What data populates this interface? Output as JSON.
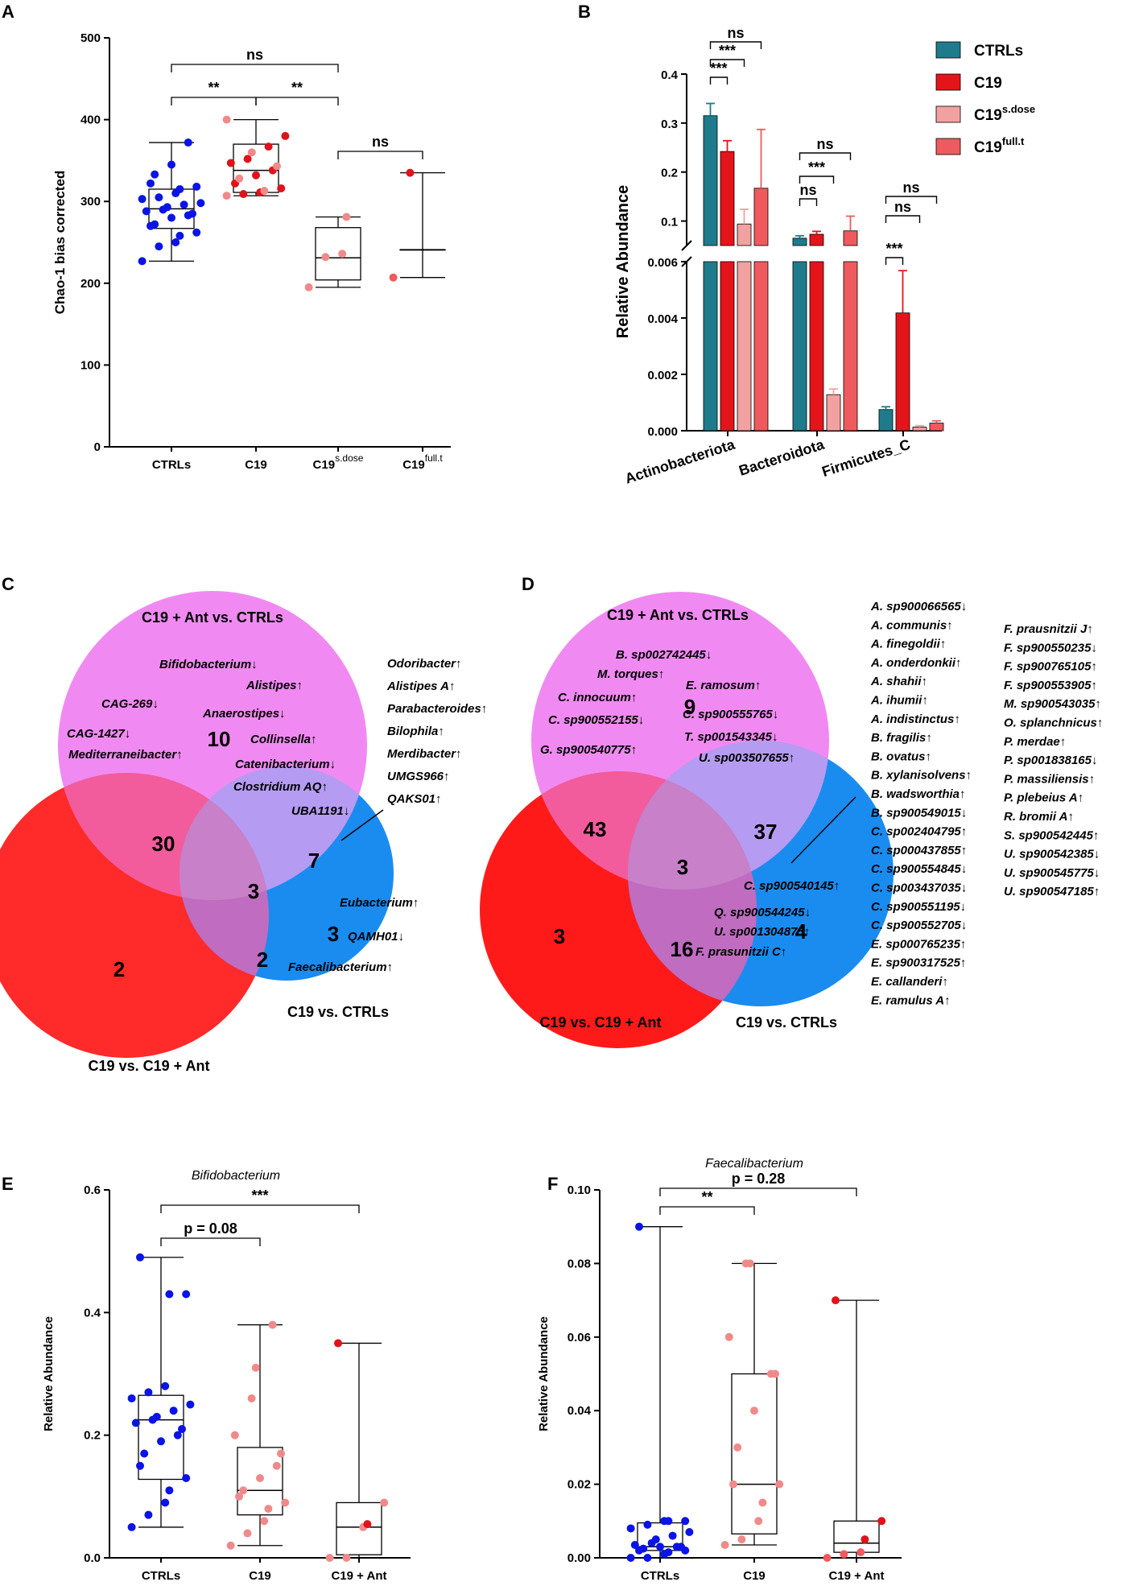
{
  "colors": {
    "blue_dot": "#0a14e6",
    "red_dot": "#e0121b",
    "pink_dot": "#f08a8a",
    "teal": "#1e7b8c",
    "red_bar": "#e4141b",
    "lightpink_bar": "#f2a1a1",
    "salmon_bar": "#ef5a5e",
    "venn_magenta": "#ee7af0",
    "venn_red": "#ff2a2a",
    "venn_blue": "#1a8cf0"
  },
  "panel_labels": [
    "A",
    "B",
    "C",
    "D",
    "E",
    "F"
  ],
  "chart_data": [
    {
      "id": "A",
      "type": "box",
      "ylabel": "Chao-1 bias corrected",
      "ylim": [
        0,
        500
      ],
      "yticks": [
        "0",
        "100",
        "200",
        "300",
        "400",
        "500"
      ],
      "categories": [
        "CTRLs",
        "C19",
        "C19",
        "C19"
      ],
      "category_sups": [
        "",
        "",
        "s.dose",
        "full.t"
      ],
      "boxes": [
        {
          "min": 227,
          "q1": 267,
          "median": 291,
          "q3": 315,
          "max": 372
        },
        {
          "min": 307,
          "q1": 311,
          "median": 338,
          "q3": 370,
          "max": 400
        },
        {
          "min": 195,
          "q1": 204,
          "median": 231,
          "q3": 268,
          "max": 281
        },
        {
          "min": 207,
          "q1": 241,
          "median": 241,
          "q3": 241,
          "max": 335
        }
      ],
      "points": [
        [
          227,
          245,
          250,
          258,
          262,
          270,
          272,
          280,
          283,
          285,
          288,
          290,
          293,
          296,
          298,
          303,
          305,
          310,
          315,
          318,
          322,
          333,
          345,
          372
        ],
        [
          307,
          309,
          311,
          313,
          316,
          322,
          328,
          332,
          338,
          343,
          347,
          352,
          360,
          367,
          380,
          400
        ],
        [
          195,
          232,
          236,
          281
        ],
        [
          207,
          335
        ]
      ],
      "brackets": [
        {
          "from": 0,
          "to": 1,
          "label": "**"
        },
        {
          "from": 1,
          "to": 2,
          "label": "**"
        },
        {
          "from": 0,
          "to": 2,
          "label": "ns"
        },
        {
          "from": 2,
          "to": 3,
          "label": "ns"
        }
      ]
    },
    {
      "id": "B",
      "type": "bar",
      "ylabel": "Relative Abundance",
      "categories": [
        "Actinobacteriota",
        "Bacteroidota",
        "Firmicutes_C"
      ],
      "ylim_upper": [
        0.05,
        0.4
      ],
      "ylim_lower": [
        0,
        0.006
      ],
      "yticks_upper": [
        "0.1",
        "0.2",
        "0.3",
        "0.4"
      ],
      "yticks_lower": [
        "0.000",
        "0.002",
        "0.004",
        "0.006"
      ],
      "series": [
        {
          "name": "CTRLs",
          "sup": "",
          "values": [
            0.315,
            0.065,
            0.00075
          ],
          "errors": [
            0.025,
            0.005,
            0.0001
          ]
        },
        {
          "name": "C19",
          "sup": "",
          "values": [
            0.242,
            0.073,
            0.00418
          ],
          "errors": [
            0.022,
            0.006,
            0.0015
          ]
        },
        {
          "name": "C19",
          "sup": "s.dose",
          "values": [
            0.094,
            0.00128,
            0.00013
          ],
          "errors": [
            0.03,
            0.0002,
            5e-05
          ]
        },
        {
          "name": "C19",
          "sup": "full.t",
          "values": [
            0.167,
            0.08,
            0.00027
          ],
          "errors": [
            0.12,
            0.03,
            8e-05
          ]
        }
      ],
      "brackets": [
        {
          "cat": 0,
          "from": 0,
          "to": 1,
          "label": "***"
        },
        {
          "cat": 0,
          "from": 0,
          "to": 2,
          "label": "***"
        },
        {
          "cat": 0,
          "from": 0,
          "to": 3,
          "label": "ns"
        },
        {
          "cat": 1,
          "from": 0,
          "to": 1,
          "label": "ns"
        },
        {
          "cat": 1,
          "from": 0,
          "to": 2,
          "label": "***"
        },
        {
          "cat": 1,
          "from": 0,
          "to": 3,
          "label": "ns"
        },
        {
          "cat": 2,
          "from": 0,
          "to": 1,
          "label": "***"
        },
        {
          "cat": 2,
          "from": 0,
          "to": 2,
          "label": "ns"
        },
        {
          "cat": 2,
          "from": 0,
          "to": 3,
          "label": "ns"
        }
      ]
    },
    {
      "id": "E",
      "type": "box",
      "title": "Bifidobacterium",
      "ylabel": "Relative Abundance",
      "ylim": [
        0,
        0.6
      ],
      "yticks": [
        "0.0",
        "0.2",
        "0.4",
        "0.6"
      ],
      "categories": [
        "CTRLs",
        "C19",
        "C19 + Ant"
      ],
      "boxes": [
        {
          "min": 0.05,
          "q1": 0.128,
          "median": 0.225,
          "q3": 0.265,
          "max": 0.49
        },
        {
          "min": 0.02,
          "q1": 0.07,
          "median": 0.11,
          "q3": 0.18,
          "max": 0.38
        },
        {
          "min": 0.0,
          "q1": 0.005,
          "median": 0.05,
          "q3": 0.09,
          "max": 0.35
        }
      ],
      "points": [
        [
          0.05,
          0.07,
          0.09,
          0.11,
          0.13,
          0.15,
          0.17,
          0.19,
          0.2,
          0.21,
          0.22,
          0.225,
          0.23,
          0.24,
          0.25,
          0.26,
          0.27,
          0.28,
          0.43,
          0.43,
          0.49
        ],
        [
          0.02,
          0.04,
          0.06,
          0.08,
          0.09,
          0.1,
          0.11,
          0.13,
          0.15,
          0.17,
          0.2,
          0.26,
          0.31,
          0.38
        ],
        [
          0.0,
          0.0,
          0.05,
          0.055,
          0.09,
          0.35
        ]
      ],
      "brackets": [
        {
          "from": 0,
          "to": 1,
          "label": "p = 0.08"
        },
        {
          "from": 0,
          "to": 2,
          "label": "***"
        }
      ]
    },
    {
      "id": "F",
      "type": "box",
      "title": "Faecalibacterium",
      "ylabel": "Relative Abundance",
      "ylim": [
        0,
        0.1
      ],
      "yticks": [
        "0.00",
        "0.02",
        "0.04",
        "0.06",
        "0.08",
        "0.10"
      ],
      "categories": [
        "CTRLs",
        "C19",
        "C19 + Ant"
      ],
      "boxes": [
        {
          "min": 0.0,
          "q1": 0.002,
          "median": 0.003,
          "q3": 0.0095,
          "max": 0.09
        },
        {
          "min": 0.0035,
          "q1": 0.0065,
          "median": 0.02,
          "q3": 0.05,
          "max": 0.08
        },
        {
          "min": 0.0,
          "q1": 0.0015,
          "median": 0.004,
          "q3": 0.01,
          "max": 0.07
        }
      ],
      "points": [
        [
          0.0,
          0.0,
          0.001,
          0.0015,
          0.002,
          0.002,
          0.0025,
          0.003,
          0.003,
          0.003,
          0.0035,
          0.004,
          0.005,
          0.006,
          0.007,
          0.008,
          0.009,
          0.01,
          0.01,
          0.01,
          0.09
        ],
        [
          0.0035,
          0.005,
          0.01,
          0.015,
          0.02,
          0.02,
          0.03,
          0.04,
          0.05,
          0.05,
          0.06,
          0.08,
          0.08
        ],
        [
          0.0,
          0.001,
          0.0015,
          0.005,
          0.01,
          0.07
        ]
      ],
      "brackets": [
        {
          "from": 0,
          "to": 1,
          "label": "**"
        },
        {
          "from": 0,
          "to": 2,
          "label": "p = 0.28"
        }
      ]
    }
  ],
  "venn_c": {
    "title_top": "C19 + Ant vs. CTRLs",
    "label_right": "C19 vs. CTRLs",
    "label_bottom": "C19 vs. C19 + Ant",
    "counts": {
      "top_only": "10",
      "top_red": "30",
      "center": "3",
      "top_blue": "7",
      "blue_only": "3",
      "red_blue": "2",
      "red_only": "2"
    },
    "top_items": [
      "Bifidobacterium↓",
      "Alistipes↑",
      "CAG-269↓",
      "Anaerostipes↓",
      "CAG-1427↓",
      "Mediterraneibacter↑",
      "Collinsella↑",
      "Catenibacterium↓",
      "Clostridium AQ↑",
      "UBA1191↓"
    ],
    "side_items": [
      "Odoribacter↑",
      "Alistipes A↑",
      "Parabacteroides↑",
      "Bilophila↑",
      "Merdibacter↑",
      "UMGS966↑",
      "QAKS01↑"
    ],
    "blue_items": [
      "Eubacterium↑",
      "QAMH01↓",
      "Faecalibacterium↑"
    ]
  },
  "venn_d": {
    "title_top": "C19 + Ant  vs. CTRLs",
    "label_right": "C19 vs. CTRLs",
    "label_bottom": "C19 vs. C19 + Ant",
    "counts": {
      "top_only": "9",
      "top_red": "43",
      "center": "3",
      "top_blue": "37",
      "blue_only": "4",
      "red_blue": "16",
      "red_only": "3"
    },
    "top_items": [
      "B. sp002742445↓",
      "M. torques↑",
      "E. ramosum↑",
      "C. innocuum↑",
      "C. sp900555765↓",
      "C. sp900552155↓",
      "T. sp001543345↓",
      "G. sp900540775↑",
      "U. sp003507655↑"
    ],
    "blue_items": [
      "C. sp900540145↑",
      "Q. sp900544245↓",
      "U. sp001304875↑",
      "F. prasunitzii C↑"
    ],
    "list_col1": [
      "A. sp900066565↓",
      "A. communis↑",
      "A. finegoldii↑",
      "A. onderdonkii↑",
      "A. shahii↑",
      "A. ihumii↑",
      "A. indistinctus↑",
      "B. fragilis↑",
      "B. ovatus↑",
      "B. xylanisolvens↑",
      "B. wadsworthia↑",
      "B. sp900549015↓",
      "C. sp002404795↑",
      "C. sp000437855↑",
      "C. sp900554845↓",
      "C. sp003437035↓",
      "C. sp900551195↓",
      "C. sp900552705↓",
      "E. sp000765235↑",
      "E. sp900317525↑",
      "E. callanderi↑",
      "E. ramulus A↑"
    ],
    "list_col2": [
      "F. prausnitzii J↑",
      "F. sp900550235↓",
      "F. sp900765105↑",
      "F. sp900553905↑",
      "M. sp900543035↑",
      "O. splanchnicus↑",
      "P. merdae↑",
      "P. sp001838165↓",
      "P. massiliensis↑",
      "P. plebeius A↑",
      "R. bromii A↑",
      "S. sp900542445↑",
      "U. sp900542385↓",
      "U. sp900545775↓",
      "U. sp900547185↑"
    ]
  }
}
